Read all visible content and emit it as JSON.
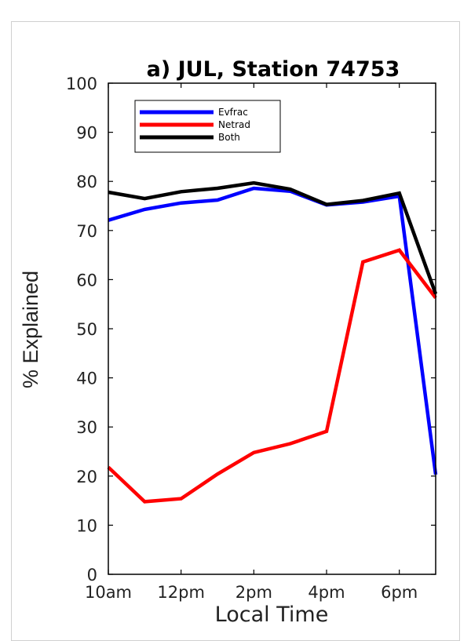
{
  "chart_data": {
    "type": "line",
    "title": "a) JUL, Station 74753",
    "xlabel": "Local Time",
    "ylabel": "% Explained",
    "x": [
      10,
      11,
      12,
      13,
      14,
      15,
      16,
      17,
      18,
      19
    ],
    "xlim": [
      10,
      19
    ],
    "ylim": [
      0,
      100
    ],
    "xticks": [
      10,
      12,
      14,
      16,
      18
    ],
    "xtick_labels": [
      "10am",
      "12pm",
      "2pm",
      "4pm",
      "6pm"
    ],
    "yticks": [
      0,
      10,
      20,
      30,
      40,
      50,
      60,
      70,
      80,
      90,
      100
    ],
    "ytick_labels": [
      "0",
      "10",
      "20",
      "30",
      "40",
      "50",
      "60",
      "70",
      "80",
      "90",
      "100"
    ],
    "grid": false,
    "legend_position": "top-left",
    "series": [
      {
        "name": "Evfrac",
        "color": "#0000ff",
        "values": [
          72.1,
          74.3,
          75.6,
          76.2,
          78.6,
          78.0,
          75.2,
          75.8,
          77.0,
          20.3
        ]
      },
      {
        "name": "Netrad",
        "color": "#ff0000",
        "values": [
          21.8,
          14.8,
          15.4,
          20.4,
          24.8,
          26.6,
          29.1,
          63.6,
          66.0,
          56.3
        ]
      },
      {
        "name": "Both",
        "color": "#000000",
        "values": [
          77.8,
          76.5,
          77.9,
          78.6,
          79.7,
          78.4,
          75.3,
          76.1,
          77.6,
          57.1
        ]
      }
    ]
  }
}
